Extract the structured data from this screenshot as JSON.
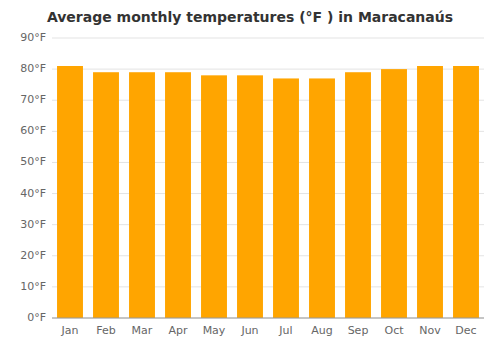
{
  "chart_data": {
    "type": "bar",
    "title": "Average monthly temperatures (°F ) in Maracanaús",
    "categories": [
      "Jan",
      "Feb",
      "Mar",
      "Apr",
      "May",
      "Jun",
      "Jul",
      "Aug",
      "Sep",
      "Oct",
      "Nov",
      "Dec"
    ],
    "values": [
      81,
      79,
      79,
      79,
      78,
      78,
      77,
      77,
      79,
      80,
      81,
      81
    ],
    "color": "#FFA500",
    "ylim": [
      0,
      90
    ],
    "yticks": [
      {
        "value": 0,
        "label": "0°F"
      },
      {
        "value": 10,
        "label": "10°F"
      },
      {
        "value": 20,
        "label": "20°F"
      },
      {
        "value": 30,
        "label": "30°F"
      },
      {
        "value": 40,
        "label": "40°F"
      },
      {
        "value": 50,
        "label": "50°F"
      },
      {
        "value": 60,
        "label": "60°F"
      },
      {
        "value": 70,
        "label": "70°F"
      },
      {
        "value": 80,
        "label": "80°F"
      },
      {
        "value": 90,
        "label": "90°F"
      }
    ],
    "grid": true
  }
}
